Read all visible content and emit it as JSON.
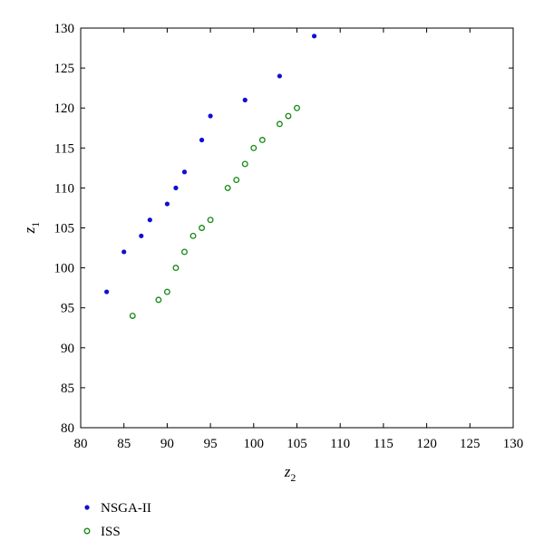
{
  "chart_data": {
    "type": "scatter",
    "title": "",
    "xlabel": {
      "main": "z",
      "sub": "2"
    },
    "ylabel": {
      "main": "z",
      "sub": "1"
    },
    "xlim": [
      80,
      130
    ],
    "ylim": [
      80,
      130
    ],
    "xticks": [
      80,
      85,
      90,
      95,
      100,
      105,
      110,
      115,
      120,
      125,
      130
    ],
    "yticks": [
      80,
      85,
      90,
      95,
      100,
      105,
      110,
      115,
      120,
      125,
      130
    ],
    "grid": false,
    "legend_position": "below-left",
    "series": [
      {
        "name": "NSGA-II",
        "marker": "filled-dot",
        "color": "#1010d0",
        "points": [
          [
            83,
            97
          ],
          [
            85,
            102
          ],
          [
            87,
            104
          ],
          [
            88,
            106
          ],
          [
            90,
            108
          ],
          [
            91,
            110
          ],
          [
            92,
            112
          ],
          [
            94,
            116
          ],
          [
            95,
            119
          ],
          [
            99,
            121
          ],
          [
            103,
            124
          ],
          [
            107,
            129
          ]
        ]
      },
      {
        "name": "ISS",
        "marker": "open-circle",
        "color": "#118811",
        "points": [
          [
            86,
            94
          ],
          [
            89,
            96
          ],
          [
            90,
            97
          ],
          [
            91,
            100
          ],
          [
            92,
            102
          ],
          [
            93,
            104
          ],
          [
            94,
            105
          ],
          [
            95,
            106
          ],
          [
            97,
            110
          ],
          [
            98,
            111
          ],
          [
            99,
            113
          ],
          [
            100,
            115
          ],
          [
            101,
            116
          ],
          [
            103,
            118
          ],
          [
            104,
            119
          ],
          [
            105,
            120
          ]
        ]
      }
    ]
  }
}
